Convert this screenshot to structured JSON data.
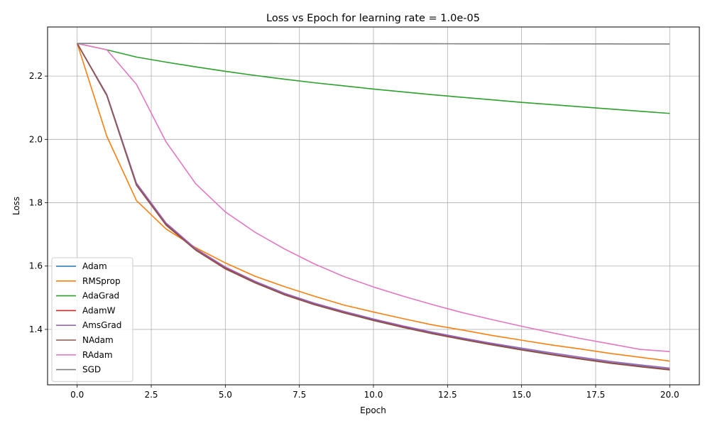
{
  "chart_data": {
    "type": "line",
    "title": "Loss vs Epoch for learning rate = 1.0e-05",
    "xlabel": "Epoch",
    "ylabel": "Loss",
    "xlim": [
      -1.0,
      21.0
    ],
    "ylim": [
      1.225,
      2.355
    ],
    "xticks": [
      0.0,
      2.5,
      5.0,
      7.5,
      10.0,
      12.5,
      15.0,
      17.5,
      20.0
    ],
    "xtick_labels": [
      "0.0",
      "2.5",
      "5.0",
      "7.5",
      "10.0",
      "12.5",
      "15.0",
      "17.5",
      "20.0"
    ],
    "yticks": [
      1.4,
      1.6,
      1.8,
      2.0,
      2.2
    ],
    "ytick_labels": [
      "1.4",
      "1.6",
      "1.8",
      "2.0",
      "2.2"
    ],
    "grid": true,
    "legend_position": "lower-left",
    "x": [
      0,
      1,
      2,
      3,
      4,
      5,
      6,
      7,
      8,
      9,
      10,
      11,
      12,
      13,
      14,
      15,
      16,
      17,
      18,
      19,
      20
    ],
    "series": [
      {
        "name": "Adam",
        "color": "#1f77b4",
        "values": [
          2.303,
          2.14,
          1.857,
          1.732,
          1.652,
          1.594,
          1.549,
          1.511,
          1.48,
          1.454,
          1.43,
          1.408,
          1.388,
          1.37,
          1.353,
          1.337,
          1.322,
          1.308,
          1.295,
          1.284,
          1.274
        ]
      },
      {
        "name": "RMSprop",
        "color": "#ff7f0e",
        "values": [
          2.303,
          2.01,
          1.807,
          1.717,
          1.658,
          1.61,
          1.568,
          1.535,
          1.505,
          1.477,
          1.455,
          1.434,
          1.414,
          1.398,
          1.381,
          1.366,
          1.351,
          1.338,
          1.324,
          1.312,
          1.3
        ]
      },
      {
        "name": "AdaGrad",
        "color": "#2ca02c",
        "values": [
          2.303,
          2.283,
          2.26,
          2.244,
          2.229,
          2.215,
          2.202,
          2.19,
          2.179,
          2.169,
          2.159,
          2.15,
          2.141,
          2.133,
          2.125,
          2.117,
          2.11,
          2.103,
          2.096,
          2.089,
          2.082
        ]
      },
      {
        "name": "AdamW",
        "color": "#d62728",
        "values": [
          2.303,
          2.14,
          1.856,
          1.731,
          1.651,
          1.593,
          1.548,
          1.51,
          1.479,
          1.453,
          1.429,
          1.407,
          1.387,
          1.369,
          1.352,
          1.336,
          1.321,
          1.307,
          1.294,
          1.283,
          1.273
        ]
      },
      {
        "name": "AmsGrad",
        "color": "#9467bd",
        "values": [
          2.303,
          2.142,
          1.862,
          1.736,
          1.655,
          1.597,
          1.552,
          1.514,
          1.483,
          1.457,
          1.433,
          1.411,
          1.391,
          1.373,
          1.356,
          1.341,
          1.326,
          1.312,
          1.299,
          1.288,
          1.278
        ]
      },
      {
        "name": "NAdam",
        "color": "#8c564b",
        "values": [
          2.303,
          2.138,
          1.855,
          1.729,
          1.65,
          1.591,
          1.547,
          1.509,
          1.478,
          1.452,
          1.428,
          1.406,
          1.386,
          1.368,
          1.351,
          1.335,
          1.32,
          1.306,
          1.293,
          1.282,
          1.272
        ]
      },
      {
        "name": "RAdam",
        "color": "#e377c2",
        "values": [
          2.303,
          2.283,
          2.174,
          1.992,
          1.86,
          1.771,
          1.707,
          1.654,
          1.607,
          1.567,
          1.534,
          1.505,
          1.478,
          1.453,
          1.431,
          1.41,
          1.39,
          1.371,
          1.354,
          1.337,
          1.33
        ]
      },
      {
        "name": "SGD",
        "color": "#7f7f7f",
        "values": [
          2.303,
          2.303,
          2.303,
          2.303,
          2.3029,
          2.3028,
          2.3027,
          2.3026,
          2.3025,
          2.3024,
          2.3023,
          2.3022,
          2.3021,
          2.302,
          2.3019,
          2.3018,
          2.3017,
          2.3016,
          2.3015,
          2.3014,
          2.3013
        ]
      }
    ]
  }
}
